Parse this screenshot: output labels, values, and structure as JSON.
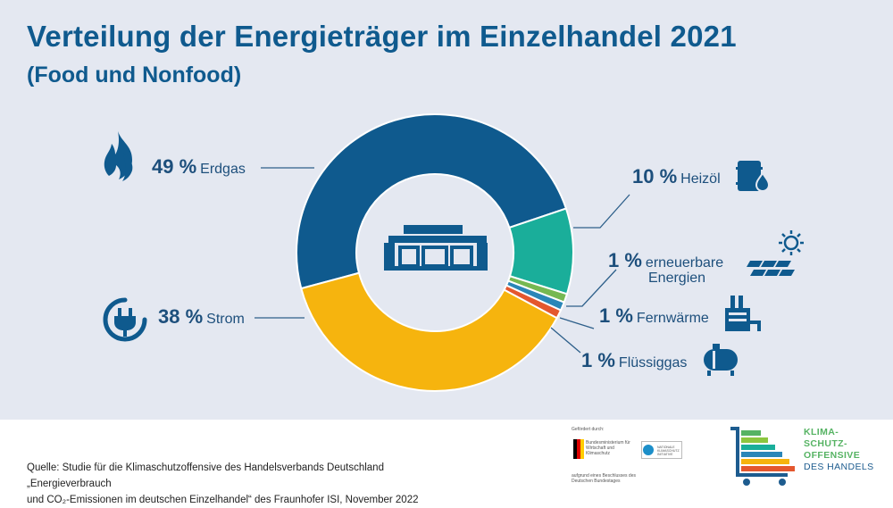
{
  "header": {
    "title": "Verteilung der Energieträger im Einzelhandel 2021",
    "subtitle": "(Food und Nonfood)"
  },
  "chart_data": {
    "type": "pie",
    "donut": true,
    "categories": [
      "Erdgas",
      "Heizöl",
      "erneuerbare Energien",
      "Fernwärme",
      "Flüssiggas",
      "Strom"
    ],
    "values": [
      49,
      10,
      1,
      1,
      1,
      38
    ],
    "value_labels": [
      "49 %",
      "10 %",
      "1 %",
      "1 %",
      "1 %",
      "38 %"
    ],
    "colors": [
      "#0f5a8e",
      "#1aae9a",
      "#76b852",
      "#2a86b8",
      "#e4572e",
      "#f6b40e"
    ],
    "icons": [
      "flame-icon",
      "oil-barrel-icon",
      "solar-panel-icon",
      "district-heating-icon",
      "gas-tank-icon",
      "plug-icon"
    ],
    "center_icon": "store-icon"
  },
  "labels": {
    "erdgas": {
      "pct": "49 %",
      "name": "Erdgas"
    },
    "heizoel": {
      "pct": "10 %",
      "name": "Heizöl"
    },
    "erneuerbar": {
      "pct": "1 %",
      "name": "erneuerbare",
      "name2": "Energien"
    },
    "fernwaerme": {
      "pct": "1 %",
      "name": "Fernwärme"
    },
    "fluessiggas": {
      "pct": "1 %",
      "name": "Flüssiggas"
    },
    "strom": {
      "pct": "38 %",
      "name": "Strom"
    }
  },
  "footer": {
    "source_line1": "Quelle: Studie für die Klimaschutzoffensive des Handelsverbands Deutschland „Energieverbrauch",
    "source_line2": "und CO₂-Emissionen im deutschen Einzelhandel“ des Fraunhofer ISI, November 2022",
    "sponsor_heading": "Gefördert durch:",
    "ministry": "Bundesministerium für Wirtschaft und Klimaschutz",
    "nki": "NATIONALE KLIMASCHUTZ INITIATIVE",
    "bundestag": "aufgrund eines Beschlusses des Deutschen Bundestages",
    "brand_line1": "KLIMA-",
    "brand_line2": "SCHUTZ-",
    "brand_line3": "OFFENSIVE",
    "brand_line4": "DES HANDELS"
  }
}
